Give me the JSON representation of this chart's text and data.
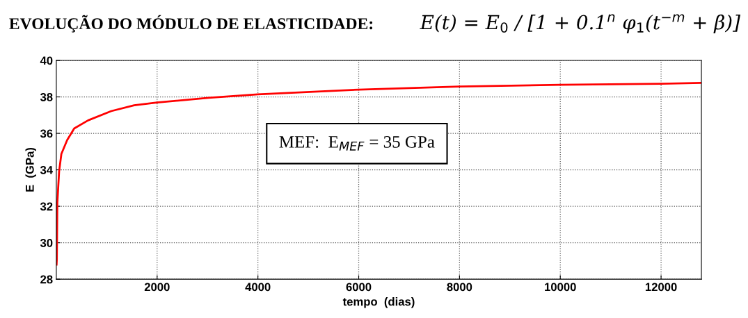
{
  "chart_data": {
    "type": "line",
    "title": "EVOLUÇÃO DO MÓDULO DE ELASTICIDADE:",
    "xlabel": "tempo  (dias)",
    "ylabel": "E  (GPa)",
    "annotations": [
      "E(t) = E$_{0}$ / [1 + 0.1$^{n}$ φ$_{1}$(t$^{−m}$ + β)]",
      "MEF:  E$_{MEF}$ = 35 GPa"
    ],
    "x": [
      5,
      10,
      20,
      55,
      100,
      215,
      355,
      630,
      1090,
      1545,
      2000,
      3020,
      4000,
      6000,
      8000,
      10000,
      12000,
      12800
    ],
    "series": [
      {
        "color": "#ff0000",
        "values": [
          28.8,
          29.1,
          32.2,
          33.9,
          34.87,
          35.63,
          36.27,
          36.71,
          37.22,
          37.54,
          37.69,
          37.95,
          38.14,
          38.4,
          38.57,
          38.66,
          38.72,
          38.77
        ]
      }
    ],
    "xlim": [
      0,
      12800
    ],
    "ylim": [
      28,
      40
    ],
    "xticks": [
      2000,
      4000,
      6000,
      8000,
      10000,
      12000
    ],
    "yticks": [
      28,
      30,
      32,
      34,
      36,
      38,
      40
    ],
    "grid": true,
    "line_style": "solid",
    "marker": "none"
  }
}
